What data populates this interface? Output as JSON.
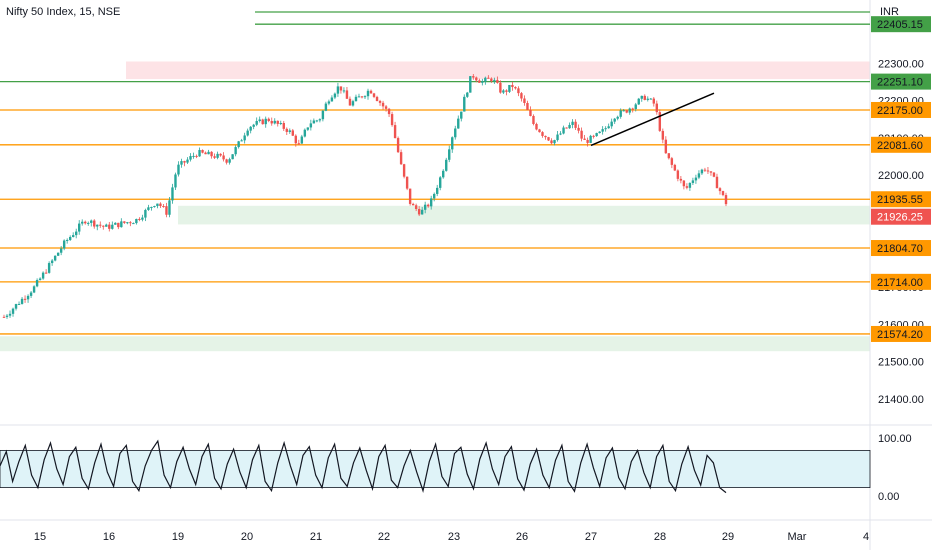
{
  "header": {
    "title": "Nifty 50 Index, 15, NSE",
    "currency": "INR"
  },
  "colors": {
    "up": "#26a69a",
    "down": "#ef5350",
    "level_orange": "#ff9800",
    "level_green": "#43a047",
    "supply_zone": "#fde3e6",
    "demand_zone": "#e5f3e7",
    "stoch_band": "#dff3f8",
    "trendline": "#000000",
    "last_price": "#ef5350"
  },
  "chart_data": {
    "type": "candlestick",
    "title": "Nifty 50 Index, 15, NSE",
    "ylim": [
      21330,
      22470
    ],
    "yticks": [
      22300,
      22200,
      22100,
      22000,
      21900,
      21700,
      21600,
      21500,
      21400
    ],
    "ytick_labels": [
      "22300.00",
      "22200.00",
      "22100.00",
      "22000.00",
      "21900.00",
      "21700.00",
      "21600.00",
      "21500.00",
      "21400.00"
    ],
    "xticks": [
      "15",
      "16",
      "19",
      "20",
      "21",
      "22",
      "23",
      "26",
      "27",
      "28",
      "29",
      "Mar",
      "4"
    ],
    "horizontal_levels": [
      {
        "price": 22405.15,
        "label": "22405.15",
        "color": "green"
      },
      {
        "price": 22251.1,
        "label": "22251.10",
        "color": "green"
      },
      {
        "price": 22175.0,
        "label": "22175.00",
        "color": "orange"
      },
      {
        "price": 22081.6,
        "label": "22081.60",
        "color": "orange"
      },
      {
        "price": 21935.55,
        "label": "21935.55",
        "color": "orange"
      },
      {
        "price": 21804.7,
        "label": "21804.70",
        "color": "orange"
      },
      {
        "price": 21714.0,
        "label": "21714.00",
        "color": "orange"
      },
      {
        "price": 21574.2,
        "label": "21574.20",
        "color": "orange"
      }
    ],
    "top_green_level": 22450,
    "zones": [
      {
        "kind": "supply",
        "top": 22305,
        "bottom": 22258,
        "from_session": "16",
        "to_session": "29"
      },
      {
        "kind": "demand",
        "top": 21918,
        "bottom": 21868,
        "from_session": "19",
        "to_session": "29"
      },
      {
        "kind": "demand",
        "top": 21568,
        "bottom": 21528,
        "from_session": "15",
        "to_session": "29"
      }
    ],
    "last_price": {
      "value": 21926.25,
      "label": "21926.25"
    },
    "trendline": {
      "from": {
        "session": "27",
        "price": 22080
      },
      "to": {
        "session": "28",
        "price": 22220
      }
    },
    "price_path": [
      [
        0,
        21620
      ],
      [
        3,
        21700
      ],
      [
        6,
        21820
      ],
      [
        8,
        21880
      ],
      [
        10,
        21860
      ],
      [
        13,
        21880
      ],
      [
        15,
        21930
      ],
      [
        16,
        21900
      ],
      [
        17,
        22020
      ],
      [
        19,
        22060
      ],
      [
        21,
        22050
      ],
      [
        22,
        22040
      ],
      [
        23,
        22080
      ],
      [
        24,
        22130
      ],
      [
        26,
        22150
      ],
      [
        28,
        22120
      ],
      [
        29,
        22080
      ],
      [
        30,
        22140
      ],
      [
        31,
        22150
      ],
      [
        32,
        22210
      ],
      [
        33,
        22240
      ],
      [
        34,
        22190
      ],
      [
        36,
        22230
      ],
      [
        38,
        22160
      ],
      [
        39,
        22030
      ],
      [
        40,
        21920
      ],
      [
        41,
        21900
      ],
      [
        42,
        21930
      ],
      [
        43,
        22000
      ],
      [
        44,
        22100
      ],
      [
        45,
        22180
      ],
      [
        46,
        22270
      ],
      [
        47,
        22250
      ],
      [
        48,
        22260
      ],
      [
        49,
        22220
      ],
      [
        50,
        22240
      ],
      [
        51,
        22200
      ],
      [
        52,
        22140
      ],
      [
        53,
        22110
      ],
      [
        54,
        22090
      ],
      [
        55,
        22120
      ],
      [
        56,
        22140
      ],
      [
        57,
        22090
      ],
      [
        58,
        22100
      ],
      [
        59,
        22120
      ],
      [
        60,
        22160
      ],
      [
        61,
        22170
      ],
      [
        62,
        22190
      ],
      [
        63,
        22210
      ],
      [
        64,
        22190
      ],
      [
        65,
        22060
      ],
      [
        66,
        22010
      ],
      [
        67,
        21960
      ],
      [
        68,
        22000
      ],
      [
        69,
        22020
      ],
      [
        70,
        21980
      ],
      [
        71,
        21926.25
      ]
    ],
    "oscillator": {
      "upper": 80,
      "lower": 20,
      "ytick_labels": [
        "100.00",
        "0.00"
      ],
      "values": [
        55,
        78,
        30,
        62,
        88,
        40,
        20,
        65,
        92,
        50,
        25,
        70,
        85,
        35,
        18,
        60,
        90,
        45,
        22,
        75,
        88,
        30,
        15,
        55,
        80,
        95,
        40,
        20,
        62,
        85,
        50,
        25,
        70,
        90,
        35,
        18,
        58,
        82,
        45,
        20,
        65,
        88,
        30,
        15,
        60,
        92,
        55,
        25,
        72,
        86,
        40,
        20,
        68,
        90,
        35,
        22,
        60,
        84,
        48,
        18,
        70,
        88,
        32,
        20,
        55,
        80,
        45,
        15,
        62,
        90,
        38,
        22,
        75,
        85,
        42,
        18,
        66,
        92,
        50,
        25,
        70,
        86,
        34,
        16,
        58,
        82,
        40,
        20,
        64,
        88,
        30,
        14,
        60,
        90,
        52,
        22,
        68,
        84,
        36,
        18,
        62,
        80,
        44,
        20,
        70,
        88,
        30,
        15,
        58,
        86,
        48,
        24,
        72,
        60,
        20,
        12
      ]
    }
  }
}
